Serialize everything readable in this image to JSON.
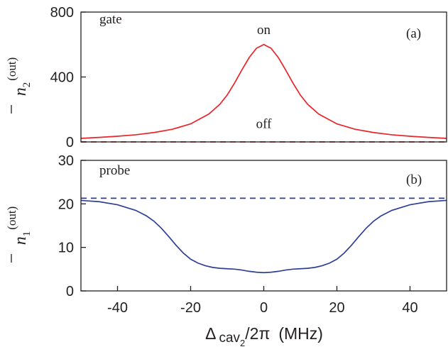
{
  "chart_data": [
    {
      "type": "line",
      "panel_label": "(a)",
      "corner_label": "gate",
      "ylabel": {
        "symbol": "n",
        "subscript": "2",
        "superscript": "(out)"
      },
      "xlim": [
        -50,
        50
      ],
      "ylim": [
        0,
        800
      ],
      "yticks": [
        0,
        400,
        800
      ],
      "ytick_labels": [
        "0",
        "400",
        "800"
      ],
      "annotations": [
        {
          "text": "on",
          "x": 0,
          "y": 665
        },
        {
          "text": "off",
          "x": 0,
          "y": 85
        }
      ],
      "series": [
        {
          "style": "solid",
          "color": "#e8252a",
          "x": [
            -50,
            -45,
            -40,
            -35,
            -30,
            -25,
            -20,
            -15,
            -12,
            -10,
            -8,
            -6,
            -4,
            -2,
            0,
            2,
            4,
            6,
            8,
            10,
            12,
            15,
            20,
            25,
            30,
            35,
            40,
            45,
            50
          ],
          "y": [
            22,
            28,
            35,
            44,
            58,
            78,
            111,
            172,
            232,
            289,
            362,
            443,
            519,
            577,
            600,
            577,
            519,
            443,
            362,
            289,
            232,
            172,
            111,
            78,
            58,
            44,
            35,
            28,
            22
          ]
        },
        {
          "style": "dashed",
          "color": "#e8252a",
          "x": [
            -50,
            50
          ],
          "y": [
            0,
            0
          ]
        }
      ]
    },
    {
      "type": "line",
      "panel_label": "(b)",
      "corner_label": "probe",
      "ylabel": {
        "symbol": "n",
        "subscript": "1",
        "superscript": "(out)"
      },
      "xlabel": {
        "prefix": "Δ",
        "sub": "cav",
        "subsub": "2",
        "suffix": "/2π",
        "unit": "(MHz)"
      },
      "xlim": [
        -50,
        50
      ],
      "ylim": [
        0,
        30
      ],
      "xticks": [
        -40,
        -20,
        0,
        20,
        40
      ],
      "xtick_labels": [
        "-40",
        "-20",
        "0",
        "20",
        "40"
      ],
      "yticks": [
        0,
        10,
        20,
        30
      ],
      "ytick_labels": [
        "0",
        "10",
        "20",
        "30"
      ],
      "series": [
        {
          "style": "solid",
          "color": "#2e3f96",
          "x": [
            -50,
            -45,
            -40,
            -35,
            -32,
            -30,
            -28,
            -26,
            -24,
            -22,
            -20,
            -18,
            -16,
            -14,
            -12,
            -10,
            -8,
            -6,
            -4,
            -2,
            0,
            2,
            4,
            6,
            8,
            10,
            12,
            14,
            16,
            18,
            20,
            22,
            24,
            26,
            28,
            30,
            32,
            35,
            40,
            45,
            50
          ],
          "y": [
            20.8,
            20.5,
            19.8,
            18.5,
            17.2,
            16.0,
            14.4,
            12.5,
            10.5,
            8.7,
            7.3,
            6.4,
            5.8,
            5.4,
            5.2,
            5.1,
            5.0,
            4.8,
            4.5,
            4.3,
            4.2,
            4.3,
            4.5,
            4.8,
            5.0,
            5.1,
            5.2,
            5.4,
            5.8,
            6.4,
            7.3,
            8.7,
            10.5,
            12.5,
            14.4,
            16.0,
            17.2,
            18.5,
            19.8,
            20.5,
            20.8
          ]
        },
        {
          "style": "dashed",
          "color": "#2e3f96",
          "x": [
            -50,
            50
          ],
          "y": [
            21.3,
            21.3
          ]
        }
      ]
    }
  ]
}
